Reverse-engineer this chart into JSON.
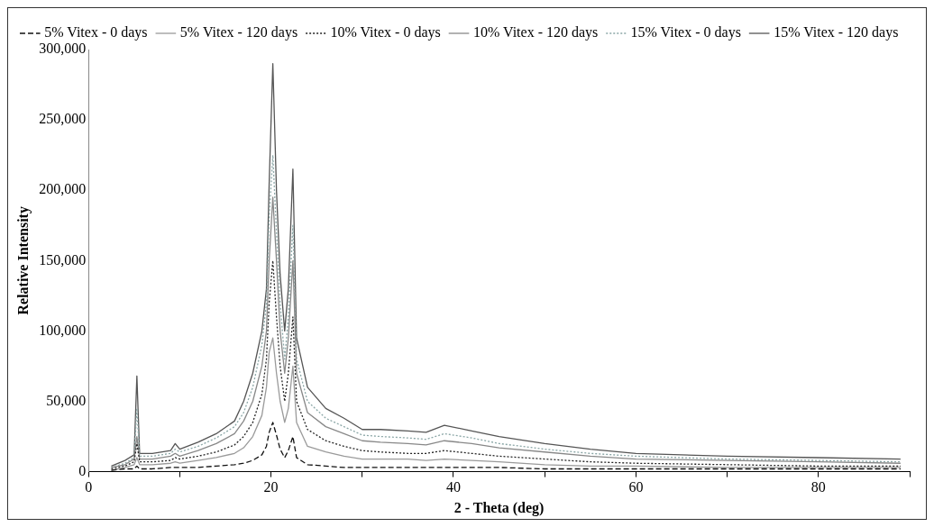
{
  "chart_data": {
    "type": "line",
    "xlabel": "2 - Theta (deg)",
    "ylabel": "Relative Intensity",
    "x": [
      2.5,
      4,
      5,
      5.3,
      5.6,
      7,
      9,
      9.5,
      10,
      12,
      14,
      16,
      17,
      18,
      19,
      19.5,
      19.8,
      20.2,
      20.6,
      21,
      21.5,
      21.9,
      22.4,
      22.8,
      24,
      26,
      28,
      30,
      32,
      35,
      37,
      39,
      42,
      45,
      50,
      55,
      60,
      70,
      80,
      89
    ],
    "series": [
      {
        "name": "5% Vitex - 0 days",
        "color": "#111111",
        "line_style": "dashed",
        "values": [
          1000,
          2000,
          2000,
          4000,
          2000,
          2000,
          3000,
          3000,
          3000,
          3000,
          4000,
          5000,
          6000,
          8000,
          12000,
          18000,
          28000,
          35000,
          26000,
          16000,
          10000,
          15000,
          25000,
          10000,
          5000,
          4000,
          3000,
          3000,
          3000,
          3000,
          3000,
          3000,
          3000,
          3000,
          2000,
          2000,
          2000,
          2000,
          2000,
          2000
        ]
      },
      {
        "name": "5% Vitex - 120 days",
        "color": "#9a9a9a",
        "line_style": "solid",
        "values": [
          1000,
          3000,
          5000,
          10000,
          5000,
          5000,
          6000,
          7000,
          6000,
          8000,
          10000,
          13000,
          17000,
          25000,
          40000,
          60000,
          85000,
          95000,
          70000,
          50000,
          35000,
          45000,
          75000,
          35000,
          18000,
          14000,
          11000,
          9000,
          9000,
          9000,
          8000,
          9000,
          8000,
          7000,
          5000,
          4000,
          4000,
          3000,
          3000,
          3000
        ]
      },
      {
        "name": "10% Vitex - 0 days",
        "color": "#222222",
        "line_style": "dotted",
        "values": [
          2000,
          4000,
          7000,
          20000,
          7000,
          7000,
          8000,
          10000,
          9000,
          11000,
          14000,
          19000,
          25000,
          35000,
          55000,
          80000,
          120000,
          150000,
          110000,
          75000,
          50000,
          70000,
          110000,
          50000,
          30000,
          22000,
          18000,
          15000,
          14000,
          13000,
          13000,
          15000,
          13000,
          11000,
          9000,
          7000,
          6000,
          5000,
          4000,
          4000
        ]
      },
      {
        "name": "10% Vitex - 120 days",
        "color": "#888888",
        "line_style": "solid",
        "values": [
          3000,
          5000,
          9000,
          25000,
          9000,
          9000,
          11000,
          13000,
          11000,
          15000,
          20000,
          27000,
          36000,
          50000,
          75000,
          100000,
          150000,
          195000,
          150000,
          100000,
          70000,
          95000,
          150000,
          70000,
          42000,
          32000,
          27000,
          22000,
          21000,
          20000,
          19000,
          22000,
          20000,
          17000,
          14000,
          11000,
          9000,
          8000,
          7000,
          6000
        ]
      },
      {
        "name": "15% Vitex - 0 days",
        "color": "#8aa6a6",
        "line_style": "dotted",
        "values": [
          3000,
          6000,
          10000,
          45000,
          11000,
          11000,
          13000,
          16000,
          14000,
          18000,
          24000,
          32000,
          42000,
          60000,
          90000,
          120000,
          180000,
          225000,
          170000,
          120000,
          80000,
          110000,
          175000,
          80000,
          50000,
          38000,
          32000,
          26000,
          25000,
          24000,
          23000,
          27000,
          24000,
          20000,
          16000,
          13000,
          11000,
          9000,
          8000,
          7000
        ]
      },
      {
        "name": "15% Vitex - 120 days",
        "color": "#555555",
        "line_style": "solid",
        "values": [
          4000,
          8000,
          12000,
          68000,
          13000,
          13000,
          15000,
          20000,
          16000,
          21000,
          27000,
          36000,
          50000,
          70000,
          100000,
          130000,
          205000,
          290000,
          200000,
          140000,
          100000,
          130000,
          215000,
          95000,
          60000,
          45000,
          38000,
          30000,
          30000,
          29000,
          28000,
          33000,
          29000,
          25000,
          20000,
          16000,
          13000,
          11000,
          10000,
          9000
        ]
      }
    ],
    "xlim": [
      0,
      90
    ],
    "xticks": [
      0,
      {
        "value": 10,
        "label": null
      },
      20,
      {
        "value": 30,
        "label": null
      },
      40,
      {
        "value": 50,
        "label": null
      },
      60,
      {
        "value": 70,
        "label": null
      },
      80,
      {
        "value": 90,
        "label": null
      }
    ],
    "ylim": [
      0,
      300000
    ],
    "yticks": [
      {
        "value": 0,
        "label": "0"
      },
      {
        "value": 50000,
        "label": "50,000"
      },
      {
        "value": 100000,
        "label": "100,000"
      },
      {
        "value": 150000,
        "label": "150,000"
      },
      {
        "value": 200000,
        "label": "200,000"
      },
      {
        "value": 250000,
        "label": "250,000"
      },
      {
        "value": 300000,
        "label": "300,000"
      }
    ],
    "grid": false,
    "legend": "top",
    "marker": "none"
  }
}
